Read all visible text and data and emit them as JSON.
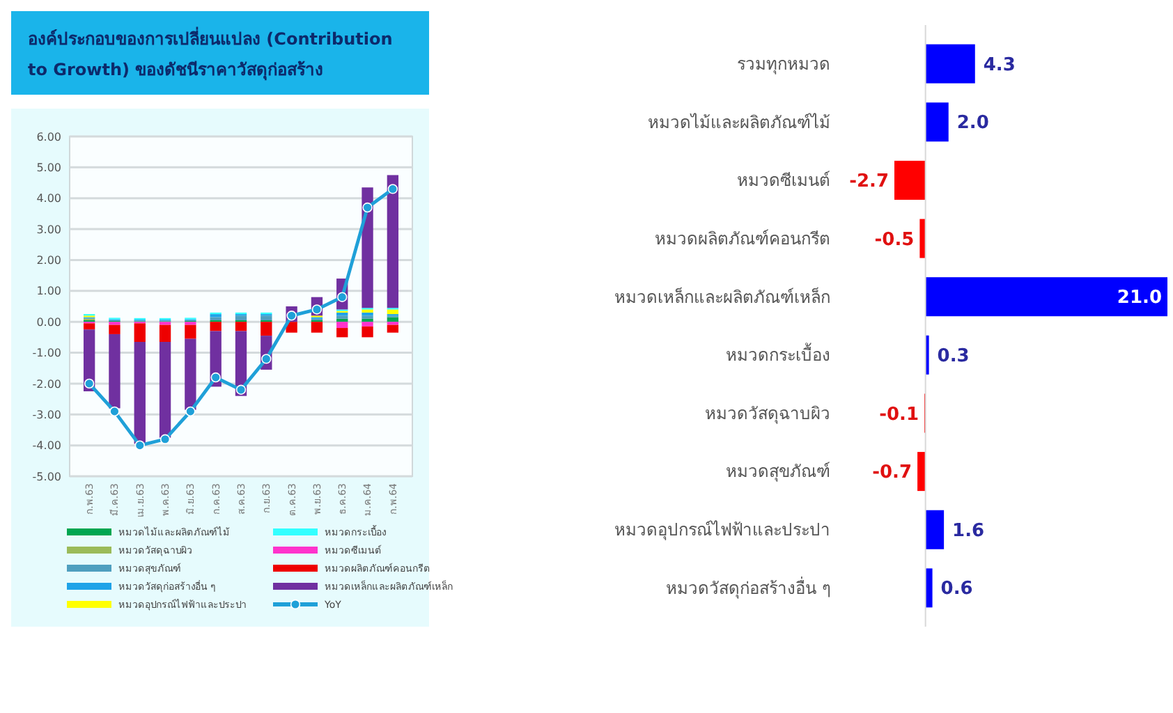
{
  "chart_data": [
    {
      "type": "bar",
      "title": "องค์ประกอบของการเปลี่ยนแปลง (Contribution to Growth) ของดัชนีราคาวัสดุก่อสร้าง",
      "categories": [
        "ก.พ.63",
        "มี.ค.63",
        "เม.ย.63",
        "พ.ค.63",
        "มิ.ย.63",
        "ก.ค.63",
        "ส.ค.63",
        "ก.ย.63",
        "ต.ค.63",
        "พ.ย.63",
        "ธ.ค.63",
        "ม.ค.64",
        "ก.พ.64"
      ],
      "stacked": true,
      "ylim": [
        -5,
        6
      ],
      "yticks": [
        {
          "value": -5,
          "label": "-5.00"
        },
        {
          "value": -4,
          "label": "-4.00"
        },
        {
          "value": -3,
          "label": "-3.00"
        },
        {
          "value": -2,
          "label": "-2.00"
        },
        {
          "value": -1,
          "label": "-1.00"
        },
        {
          "value": 0,
          "label": "0.00"
        },
        {
          "value": 1,
          "label": "1.00"
        },
        {
          "value": 2,
          "label": "2.00"
        },
        {
          "value": 3,
          "label": "3.00"
        },
        {
          "value": 4,
          "label": "4.00"
        },
        {
          "value": 5,
          "label": "5.00"
        },
        {
          "value": 6,
          "label": "6.00"
        }
      ],
      "grid": "y",
      "legend": "bottom",
      "series": [
        {
          "name": "หมวดไม้และผลิตภัณฑ์ไม้",
          "color": "#00a651",
          "values": [
            0.05,
            0.03,
            0.02,
            0.02,
            0.03,
            0.05,
            0.05,
            0.05,
            0,
            0.05,
            0.1,
            0.1,
            0.15
          ]
        },
        {
          "name": "หมวดวัสดุฉาบผิว",
          "color": "#9bbb59",
          "values": [
            0.05,
            0,
            0,
            0,
            0,
            0,
            0,
            0,
            0,
            0,
            0,
            0,
            0
          ]
        },
        {
          "name": "หมวดสุขภัณฑ์",
          "color": "#4f9fbf",
          "values": [
            0.02,
            0.02,
            0.02,
            0.02,
            0.02,
            0.1,
            0.15,
            0.15,
            0,
            0.05,
            0.1,
            0.1,
            0.05
          ]
        },
        {
          "name": "หมวดวัสดุก่อสร้างอื่น ๆ",
          "color": "#1fa3e8",
          "values": [
            0.03,
            0.03,
            0.03,
            0.03,
            0.03,
            0.1,
            0.05,
            0.05,
            0,
            0.05,
            0.1,
            0.1,
            0.05
          ]
        },
        {
          "name": "หมวดอุปกรณ์ไฟฟ้าและประปา",
          "color": "#ffff00",
          "values": [
            0.05,
            0,
            0,
            0,
            0,
            0,
            0,
            0,
            0,
            0.05,
            0.05,
            0.1,
            0.15
          ]
        },
        {
          "name": "หมวดกระเบื้อง",
          "color": "#33ffff",
          "values": [
            0.05,
            0.05,
            0.05,
            0.05,
            0.05,
            0.05,
            0.05,
            0.05,
            0,
            0,
            0.05,
            0.05,
            0.05
          ]
        },
        {
          "name": "หมวดซีเมนต์",
          "color": "#ff33cc",
          "values": [
            -0.05,
            -0.1,
            -0.05,
            -0.1,
            -0.1,
            0,
            0,
            0,
            0,
            0,
            -0.2,
            -0.15,
            -0.1
          ]
        },
        {
          "name": "หมวดผลิตภัณฑ์คอนกรีต",
          "color": "#ee0000",
          "values": [
            -0.2,
            -0.3,
            -0.6,
            -0.55,
            -0.45,
            -0.3,
            -0.3,
            -0.45,
            -0.35,
            -0.35,
            -0.3,
            -0.35,
            -0.25
          ]
        },
        {
          "name": "หมวดเหล็กและผลิตภัณฑ์เหล็ก",
          "color": "#7030a0",
          "values": [
            -2.0,
            -2.4,
            -3.3,
            -3.1,
            -2.3,
            -1.8,
            -2.1,
            -1.1,
            0.5,
            0.6,
            1.0,
            3.9,
            4.3
          ]
        },
        {
          "name": "YoY",
          "type": "line",
          "color": "#1fa0d8",
          "marker": "circle",
          "values": [
            -2.0,
            -2.9,
            -4.0,
            -3.8,
            -2.9,
            -1.8,
            -2.2,
            -1.2,
            0.2,
            0.4,
            0.8,
            3.7,
            4.3
          ]
        }
      ]
    },
    {
      "type": "bar",
      "orientation": "horizontal",
      "tick_labels": "y",
      "categories": [
        "รวมทุกหมวด",
        "หมวดไม้และผลิตภัณฑ์ไม้",
        "หมวดซีเมนต์",
        "หมวดผลิตภัณฑ์คอนกรีต",
        "หมวดเหล็กและผลิตภัณฑ์เหล็ก",
        "หมวดกระเบื้อง",
        "หมวดวัสดุฉาบผิว",
        "หมวดสุขภัณฑ์",
        "หมวดอุปกรณ์ไฟฟ้าและประปา",
        "หมวดวัสดุก่อสร้างอื่น ๆ"
      ],
      "values": [
        4.3,
        2.0,
        -2.7,
        -0.5,
        21.0,
        0.3,
        -0.1,
        -0.7,
        1.6,
        0.6
      ],
      "value_labels": [
        "4.3",
        "2.0",
        "-2.7",
        "-0.5",
        "21.0",
        "0.3",
        "-0.1",
        "-0.7",
        "1.6",
        "0.6"
      ],
      "colors": [
        "#0000ff",
        "#0000ff",
        "#ff0000",
        "#ff0000",
        "#0000ff",
        "#0000ff",
        "#ff0000",
        "#ff0000",
        "#0000ff",
        "#0000ff"
      ]
    }
  ]
}
